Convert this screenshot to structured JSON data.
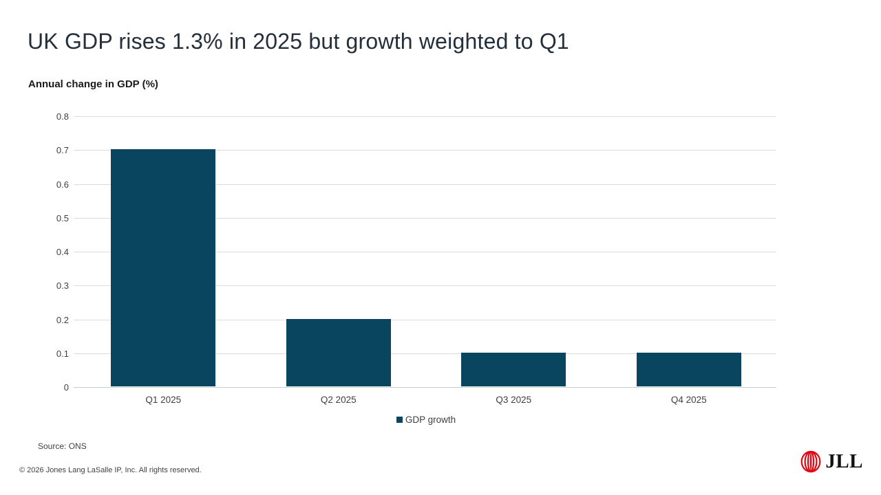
{
  "header": {
    "title": "UK GDP rises 1.3% in 2025 but growth weighted to Q1"
  },
  "chart_data": {
    "type": "bar",
    "title": "Annual change in GDP (%)",
    "categories": [
      "Q1 2025",
      "Q2 2025",
      "Q3 2025",
      "Q4 2025"
    ],
    "values": [
      0.7,
      0.2,
      0.1,
      0.1
    ],
    "series": [
      {
        "name": "GDP growth",
        "values": [
          0.7,
          0.2,
          0.1,
          0.1
        ]
      }
    ],
    "xlabel": "",
    "ylabel": "",
    "ylim": [
      0,
      0.8
    ],
    "yticks": [
      0,
      0.1,
      0.2,
      0.3,
      0.4,
      0.5,
      0.6,
      0.7,
      0.8
    ],
    "ytick_labels": [
      "0",
      "0.1",
      "0.2",
      "0.3",
      "0.4",
      "0.5",
      "0.6",
      "0.7",
      "0.8"
    ],
    "grid": true,
    "legend_position": "bottom",
    "bar_color": "#09455e"
  },
  "legend": {
    "label": "GDP growth"
  },
  "footer": {
    "source": "Source: ONS",
    "copyright": "© 2026 Jones Lang LaSalle IP, Inc. All rights reserved.",
    "logo_text": "JLL"
  },
  "colors": {
    "bar": "#09455e",
    "grid": "#d9dcdf",
    "axis": "#c7ccd0",
    "title_text": "#232f3a",
    "body_text": "#404040",
    "logo_red": "#e30613"
  }
}
